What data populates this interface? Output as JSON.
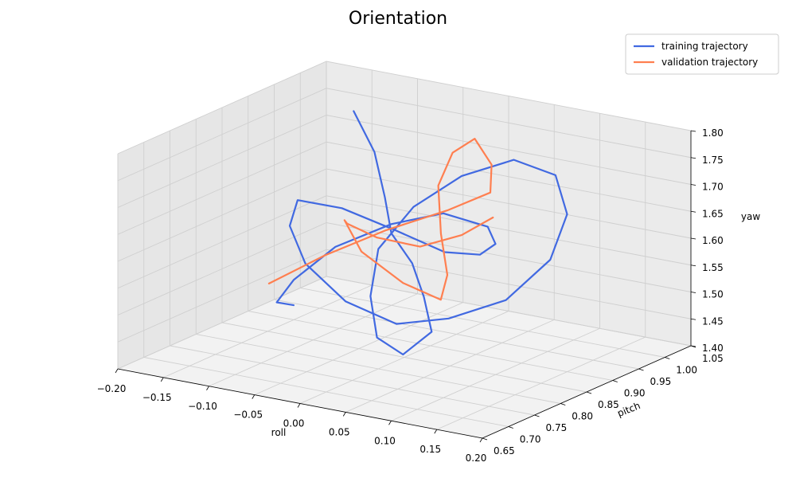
{
  "chart_data": {
    "type": "line",
    "title": "Orientation",
    "xlabel": "roll",
    "ylabel": "pitch",
    "zlabel": "yaw",
    "xlim": [
      -0.2,
      0.2
    ],
    "ylim": [
      0.65,
      1.05
    ],
    "zlim": [
      1.4,
      1.8
    ],
    "x_ticks": [
      "−0.20",
      "−0.15",
      "−0.10",
      "−0.05",
      "0.00",
      "0.05",
      "0.10",
      "0.15",
      "0.20"
    ],
    "y_ticks": [
      "0.65",
      "0.70",
      "0.75",
      "0.80",
      "0.85",
      "0.90",
      "0.95",
      "1.00",
      "1.05"
    ],
    "z_ticks": [
      "1.40",
      "1.45",
      "1.50",
      "1.55",
      "1.60",
      "1.65",
      "1.70",
      "1.75",
      "1.80"
    ],
    "grid": true,
    "legend_position": "top-right",
    "series": [
      {
        "name": "training trajectory",
        "color": "#4169e1",
        "points": [
          [
            -0.13,
            0.98,
            1.76
          ],
          [
            -0.09,
            0.95,
            1.71
          ],
          [
            -0.05,
            0.9,
            1.66
          ],
          [
            -0.02,
            0.86,
            1.62
          ],
          [
            0.02,
            0.83,
            1.59
          ],
          [
            0.05,
            0.8,
            1.55
          ],
          [
            0.07,
            0.78,
            1.5
          ],
          [
            0.05,
            0.76,
            1.46
          ],
          [
            0.01,
            0.78,
            1.47
          ],
          [
            -0.02,
            0.82,
            1.52
          ],
          [
            -0.04,
            0.87,
            1.58
          ],
          [
            -0.03,
            0.92,
            1.64
          ],
          [
            0.0,
            0.96,
            1.69
          ],
          [
            0.04,
            0.99,
            1.72
          ],
          [
            0.08,
            1.0,
            1.7
          ],
          [
            0.11,
            0.97,
            1.65
          ],
          [
            0.12,
            0.92,
            1.59
          ],
          [
            0.1,
            0.87,
            1.53
          ],
          [
            0.06,
            0.83,
            1.5
          ],
          [
            0.02,
            0.8,
            1.49
          ],
          [
            -0.03,
            0.79,
            1.52
          ],
          [
            -0.08,
            0.8,
            1.57
          ],
          [
            -0.12,
            0.84,
            1.61
          ],
          [
            -0.14,
            0.89,
            1.63
          ],
          [
            -0.12,
            0.94,
            1.6
          ],
          [
            -0.08,
            0.97,
            1.56
          ],
          [
            -0.03,
            0.98,
            1.53
          ],
          [
            0.02,
            0.96,
            1.55
          ],
          [
            0.06,
            0.92,
            1.6
          ],
          [
            0.08,
            0.87,
            1.66
          ],
          [
            0.06,
            0.82,
            1.7
          ],
          [
            0.02,
            0.79,
            1.68
          ],
          [
            -0.03,
            0.77,
            1.63
          ],
          [
            -0.07,
            0.76,
            1.56
          ],
          [
            -0.1,
            0.78,
            1.5
          ],
          [
            -0.11,
            0.83,
            1.47
          ]
        ]
      },
      {
        "name": "validation trajectory",
        "color": "#ff7f50",
        "points": [
          [
            -0.12,
            0.8,
            1.52
          ],
          [
            -0.07,
            0.82,
            1.58
          ],
          [
            -0.02,
            0.85,
            1.63
          ],
          [
            0.03,
            0.88,
            1.67
          ],
          [
            0.06,
            0.91,
            1.7
          ],
          [
            0.05,
            0.93,
            1.74
          ],
          [
            0.02,
            0.95,
            1.77
          ],
          [
            -0.01,
            0.96,
            1.73
          ],
          [
            -0.02,
            0.95,
            1.67
          ],
          [
            0.0,
            0.92,
            1.6
          ],
          [
            0.03,
            0.88,
            1.55
          ],
          [
            0.04,
            0.85,
            1.52
          ],
          [
            0.01,
            0.83,
            1.55
          ],
          [
            -0.03,
            0.82,
            1.6
          ],
          [
            -0.06,
            0.84,
            1.64
          ],
          [
            -0.08,
            0.88,
            1.61
          ],
          [
            -0.07,
            0.92,
            1.57
          ],
          [
            -0.04,
            0.95,
            1.55
          ],
          [
            0.0,
            0.96,
            1.58
          ],
          [
            0.04,
            0.95,
            1.63
          ]
        ]
      }
    ]
  }
}
